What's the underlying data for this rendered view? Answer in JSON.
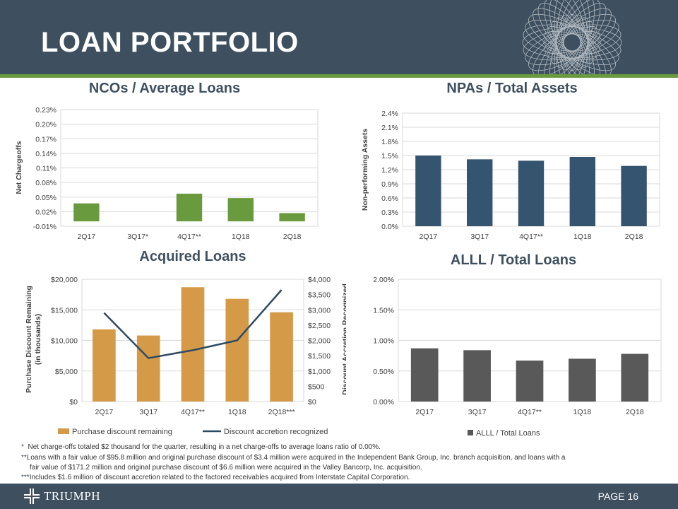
{
  "title": "LOAN PORTFOLIO",
  "page_label": "PAGE 16",
  "logo_text": "TRIUMPH",
  "colors": {
    "header": "#3e5060",
    "green": "#6a9a3e",
    "blue": "#35546f",
    "gold": "#d59a47",
    "gray": "#595959",
    "line": "#2e4a63"
  },
  "footnotes": [
    {
      "mark": "*",
      "text": "Net charge-offs totaled $2 thousand for the quarter, resulting in a net charge-offs to average loans ratio of 0.00%."
    },
    {
      "mark": "**",
      "text": "Loans with a fair value of $95.8 million and original purchase discount of $3.4 million were acquired in the Independent Bank Group, Inc. branch acquisition, and loans with a"
    },
    {
      "mark": "",
      "text": "fair value of $171.2 million and original purchase discount of $6.6 million were acquired in the Valley Bancorp, Inc. acquisition."
    },
    {
      "mark": "***",
      "text": "Includes $1.6 million of discount accretion related to the factored receivables acquired from Interstate Capital Corporation."
    }
  ],
  "chart_data": [
    {
      "id": "nco",
      "type": "bar",
      "title": "NCOs / Average Loans",
      "ylabel": "Net Chargeoffs",
      "xlabel": "",
      "categories": [
        "2Q17",
        "3Q17*",
        "4Q17**",
        "1Q18",
        "2Q18"
      ],
      "values": [
        0.037,
        0.0,
        0.057,
        0.048,
        0.017
      ],
      "ylim": [
        -0.01,
        0.23
      ],
      "yticks": [
        "-0.01%",
        "0.02%",
        "0.05%",
        "0.08%",
        "0.11%",
        "0.14%",
        "0.17%",
        "0.20%",
        "0.23%"
      ],
      "grid": true
    },
    {
      "id": "npa",
      "type": "bar",
      "title": "NPAs / Total Assets",
      "ylabel": "Non-performing Assets",
      "xlabel": "",
      "categories": [
        "2Q17",
        "3Q17",
        "4Q17**",
        "1Q18",
        "2Q18"
      ],
      "values": [
        1.5,
        1.42,
        1.39,
        1.47,
        1.28
      ],
      "ylim": [
        0,
        2.4
      ],
      "yticks": [
        "0.0%",
        "0.3%",
        "0.6%",
        "0.9%",
        "1.2%",
        "1.5%",
        "1.8%",
        "2.1%",
        "2.4%"
      ],
      "grid": true
    },
    {
      "id": "acq",
      "type": "bar+line",
      "title": "Acquired Loans",
      "ylabel": "Purchase Discount Remaining (in thousands)",
      "y2label": "Discount Accretion Recognized (in thousands)",
      "categories": [
        "2Q17",
        "3Q17",
        "4Q17**",
        "1Q18",
        "2Q18***"
      ],
      "series": [
        {
          "name": "Purchase discount remaining",
          "kind": "bar",
          "axis": "left",
          "values": [
            11800,
            10800,
            18700,
            16800,
            14600
          ]
        },
        {
          "name": "Discount accretion recognized",
          "kind": "line",
          "axis": "right",
          "values": [
            2900,
            1420,
            1680,
            2000,
            3650
          ]
        }
      ],
      "ylim": [
        0,
        20000
      ],
      "y2lim": [
        0,
        4000
      ],
      "yticks": [
        "$0",
        "$5,000",
        "$10,000",
        "$15,000",
        "$20,000"
      ],
      "y2ticks": [
        "$0",
        "$500",
        "$1,000",
        "$1,500",
        "$2,000",
        "$2,500",
        "$3,000",
        "$3,500",
        "$4,000"
      ],
      "legend": "bottom",
      "grid": true
    },
    {
      "id": "alll",
      "type": "bar",
      "title": "ALLL / Total Loans",
      "ylabel": "",
      "categories": [
        "2Q17",
        "3Q17",
        "4Q17**",
        "1Q18",
        "2Q18"
      ],
      "values": [
        0.87,
        0.84,
        0.67,
        0.7,
        0.78
      ],
      "ylim": [
        0,
        2.0
      ],
      "yticks": [
        "0.00%",
        "0.50%",
        "1.00%",
        "1.50%",
        "2.00%"
      ],
      "legend_label": "ALLL / Total Loans",
      "legend": "bottom",
      "grid": true
    }
  ]
}
